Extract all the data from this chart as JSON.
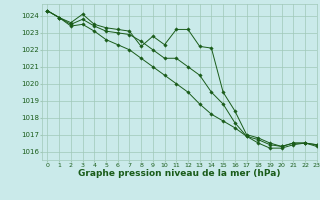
{
  "title": "Graphe pression niveau de la mer (hPa)",
  "background_color": "#caeaea",
  "grid_color": "#a0c8b8",
  "line_color": "#1a5c1a",
  "xlim": [
    -0.5,
    23
  ],
  "ylim": [
    1015.5,
    1024.7
  ],
  "yticks": [
    1016,
    1017,
    1018,
    1019,
    1020,
    1021,
    1022,
    1023,
    1024
  ],
  "xticks": [
    0,
    1,
    2,
    3,
    4,
    5,
    6,
    7,
    8,
    9,
    10,
    11,
    12,
    13,
    14,
    15,
    16,
    17,
    18,
    19,
    20,
    21,
    22,
    23
  ],
  "series": [
    [
      1024.3,
      1023.9,
      1023.6,
      1024.1,
      1023.5,
      1023.3,
      1023.2,
      1023.1,
      1022.2,
      1022.8,
      1022.3,
      1023.2,
      1023.2,
      1022.2,
      1022.1,
      1019.5,
      1018.4,
      1017.0,
      1016.8,
      1016.5,
      1016.3,
      1016.5,
      1016.5,
      1016.4
    ],
    [
      1024.3,
      1023.9,
      1023.5,
      1023.8,
      1023.4,
      1023.1,
      1023.0,
      1022.9,
      1022.5,
      1022.0,
      1021.5,
      1021.5,
      1021.0,
      1020.5,
      1019.5,
      1018.8,
      1017.7,
      1016.9,
      1016.7,
      1016.4,
      1016.3,
      1016.5,
      1016.5,
      1016.4
    ],
    [
      1024.3,
      1023.9,
      1023.4,
      1023.5,
      1023.1,
      1022.6,
      1022.3,
      1022.0,
      1021.5,
      1021.0,
      1020.5,
      1020.0,
      1019.5,
      1018.8,
      1018.2,
      1017.8,
      1017.4,
      1016.9,
      1016.5,
      1016.2,
      1016.2,
      1016.4,
      1016.5,
      1016.3
    ]
  ],
  "ylabel_fontsize": 5,
  "xlabel_fontsize": 6.5,
  "tick_fontsize": 4.5
}
